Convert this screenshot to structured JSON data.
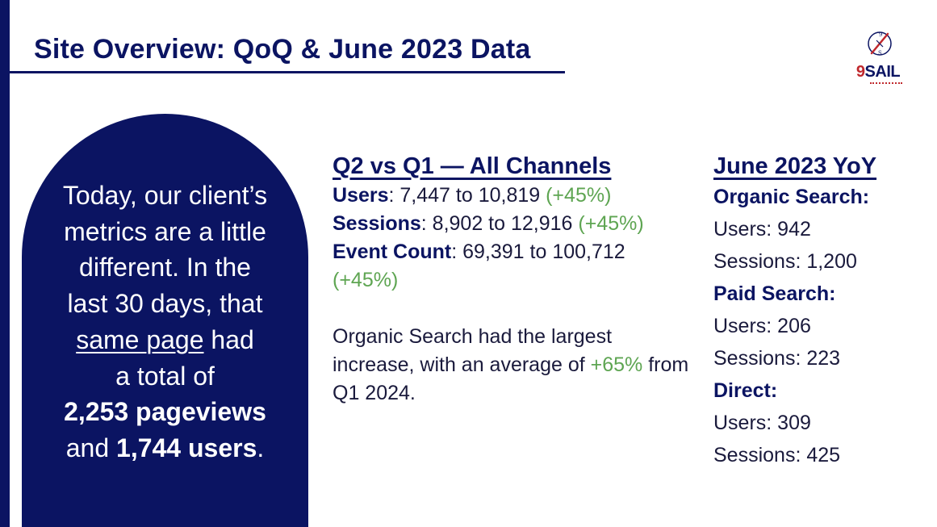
{
  "title": "Site Overview: QoQ & June 2023 Data",
  "logo": {
    "nine": "9",
    "text": "SAIL"
  },
  "highlight": {
    "line1": "Today, our client’s",
    "line2": "metrics are a little",
    "line3": "different. In the",
    "line4": "last 30 days, that",
    "same_page": "same page",
    "had": " had",
    "line6": "a total of",
    "pageviews": "2,253 pageviews",
    "and": "and ",
    "users": "1,744 users",
    "period": "."
  },
  "quarter": {
    "heading": "Q2 vs Q1 — All Channels",
    "metrics": [
      {
        "label": "Users",
        "value": ": 7,447 to 10,819 ",
        "change": "(+45%)"
      },
      {
        "label": "Sessions",
        "value": ": 8,902 to 12,916 ",
        "change": "(+45%)"
      },
      {
        "label": "Event Count",
        "value": ": 69,391 to 100,712 ",
        "change": "(+45%)"
      }
    ],
    "note_pre": "Organic Search had the largest increase, with an average of ",
    "note_change": "+65%",
    "note_post": " from Q1 2024."
  },
  "june": {
    "heading": "June 2023 YoY",
    "groups": [
      {
        "name": "Organic Search:",
        "users": "Users: 942",
        "sessions": "Sessions: 1,200"
      },
      {
        "name": "Paid Search:",
        "users": "Users: 206",
        "sessions": "Sessions: 223"
      },
      {
        "name": "Direct:",
        "users": "Users: 309",
        "sessions": "Sessions: 425"
      }
    ]
  },
  "colors": {
    "navy": "#0b1462",
    "green": "#5ea552",
    "logo_red": "#c0282d"
  }
}
